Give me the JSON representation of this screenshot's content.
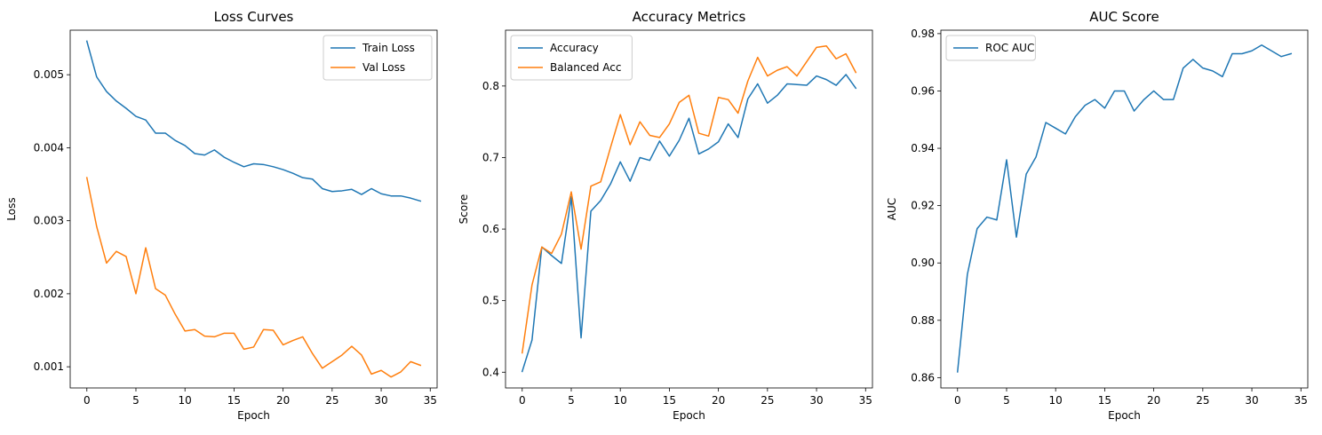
{
  "chart_data": [
    {
      "type": "line",
      "title": "Loss Curves",
      "xlabel": "Epoch",
      "ylabel": "Loss",
      "xlim": [
        -1.7,
        35.7
      ],
      "ylim": [
        0.00071,
        0.00561
      ],
      "xticks": [
        0,
        5,
        10,
        15,
        20,
        25,
        30,
        35
      ],
      "yticks": [
        0.001,
        0.002,
        0.003,
        0.004,
        0.005
      ],
      "ytick_labels": [
        "0.001",
        "0.002",
        "0.003",
        "0.004",
        "0.005"
      ],
      "grid": false,
      "legend": "top-right",
      "x": [
        0,
        1,
        2,
        3,
        4,
        5,
        6,
        7,
        8,
        9,
        10,
        11,
        12,
        13,
        14,
        15,
        16,
        17,
        18,
        19,
        20,
        21,
        22,
        23,
        24,
        25,
        26,
        27,
        28,
        29,
        30,
        31,
        32,
        33,
        34
      ],
      "series": [
        {
          "name": "Train Loss",
          "color": "#1f77b4",
          "values": [
            0.00546,
            0.00497,
            0.00477,
            0.00464,
            0.00454,
            0.00443,
            0.00438,
            0.0042,
            0.0042,
            0.0041,
            0.00403,
            0.00392,
            0.0039,
            0.00397,
            0.00387,
            0.0038,
            0.00374,
            0.00378,
            0.00377,
            0.00374,
            0.0037,
            0.00365,
            0.00359,
            0.00357,
            0.00344,
            0.0034,
            0.00341,
            0.00343,
            0.00336,
            0.00344,
            0.00337,
            0.00334,
            0.00334,
            0.00331,
            0.00327
          ]
        },
        {
          "name": "Val Loss",
          "color": "#ff7f0e",
          "values": [
            0.00359,
            0.00292,
            0.00242,
            0.00258,
            0.00251,
            0.002,
            0.00263,
            0.00207,
            0.00198,
            0.00172,
            0.00149,
            0.00151,
            0.00142,
            0.00141,
            0.00146,
            0.00146,
            0.00124,
            0.00127,
            0.00151,
            0.0015,
            0.0013,
            0.00136,
            0.00141,
            0.00118,
            0.00098,
            0.00107,
            0.00116,
            0.00128,
            0.00116,
            0.0009,
            0.00095,
            0.00086,
            0.00093,
            0.00107,
            0.00102
          ]
        }
      ]
    },
    {
      "type": "line",
      "title": "Accuracy Metrics",
      "xlabel": "Epoch",
      "ylabel": "Score",
      "xlim": [
        -1.7,
        35.7
      ],
      "ylim": [
        0.378,
        0.878
      ],
      "xticks": [
        0,
        5,
        10,
        15,
        20,
        25,
        30,
        35
      ],
      "yticks": [
        0.4,
        0.5,
        0.6,
        0.7,
        0.8
      ],
      "ytick_labels": [
        "0.4",
        "0.5",
        "0.6",
        "0.7",
        "0.8"
      ],
      "grid": false,
      "legend": "top-left",
      "x": [
        0,
        1,
        2,
        3,
        4,
        5,
        6,
        7,
        8,
        9,
        10,
        11,
        12,
        13,
        14,
        15,
        16,
        17,
        18,
        19,
        20,
        21,
        22,
        23,
        24,
        25,
        26,
        27,
        28,
        29,
        30,
        31,
        32,
        33,
        34
      ],
      "series": [
        {
          "name": "Accuracy",
          "color": "#1f77b4",
          "values": [
            0.401,
            0.445,
            0.575,
            0.563,
            0.552,
            0.645,
            0.448,
            0.625,
            0.64,
            0.663,
            0.694,
            0.667,
            0.7,
            0.696,
            0.723,
            0.702,
            0.724,
            0.755,
            0.705,
            0.712,
            0.722,
            0.747,
            0.728,
            0.782,
            0.803,
            0.776,
            0.787,
            0.803,
            0.802,
            0.801,
            0.814,
            0.809,
            0.801,
            0.816,
            0.797
          ]
        },
        {
          "name": "Balanced Acc",
          "color": "#ff7f0e",
          "values": [
            0.427,
            0.522,
            0.575,
            0.566,
            0.593,
            0.652,
            0.572,
            0.66,
            0.666,
            0.714,
            0.76,
            0.718,
            0.75,
            0.731,
            0.728,
            0.747,
            0.777,
            0.787,
            0.734,
            0.73,
            0.784,
            0.781,
            0.762,
            0.807,
            0.84,
            0.814,
            0.822,
            0.827,
            0.814,
            0.834,
            0.854,
            0.856,
            0.838,
            0.845,
            0.819
          ]
        }
      ]
    },
    {
      "type": "line",
      "title": "AUC Score",
      "xlabel": "Epoch",
      "ylabel": "AUC",
      "xlim": [
        -1.7,
        35.7
      ],
      "ylim": [
        0.8564,
        0.9812
      ],
      "xticks": [
        0,
        5,
        10,
        15,
        20,
        25,
        30,
        35
      ],
      "yticks": [
        0.86,
        0.88,
        0.9,
        0.92,
        0.94,
        0.96,
        0.98
      ],
      "ytick_labels": [
        "0.86",
        "0.88",
        "0.90",
        "0.92",
        "0.94",
        "0.96",
        "0.98"
      ],
      "grid": false,
      "legend": "top-left",
      "x": [
        0,
        1,
        2,
        3,
        4,
        5,
        6,
        7,
        8,
        9,
        10,
        11,
        12,
        13,
        14,
        15,
        16,
        17,
        18,
        19,
        20,
        21,
        22,
        23,
        24,
        25,
        26,
        27,
        28,
        29,
        30,
        31,
        32,
        33,
        34
      ],
      "series": [
        {
          "name": "ROC AUC",
          "color": "#1f77b4",
          "values": [
            0.862,
            0.896,
            0.912,
            0.916,
            0.915,
            0.936,
            0.909,
            0.931,
            0.937,
            0.949,
            0.947,
            0.945,
            0.951,
            0.955,
            0.957,
            0.954,
            0.96,
            0.96,
            0.953,
            0.957,
            0.96,
            0.957,
            0.957,
            0.968,
            0.971,
            0.968,
            0.967,
            0.965,
            0.973,
            0.973,
            0.974,
            0.976,
            0.974,
            0.972,
            0.973
          ]
        }
      ]
    }
  ]
}
